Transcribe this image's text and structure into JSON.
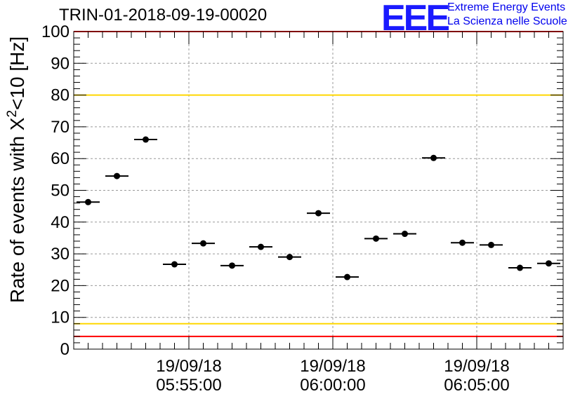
{
  "header": {
    "run_id": "TRIN-01-2018-09-19-00020",
    "logo_mark": "EEE",
    "logo_line1": "Extreme Energy Events",
    "logo_line2": "La Scienza nelle Scuole"
  },
  "colors": {
    "outer_limit": "#ff0000",
    "inner_limit": "#ffd700",
    "points": "#000000",
    "grid": "#999999",
    "logo": "#1a1aff"
  },
  "chart_data": {
    "type": "scatter",
    "title": "TRIN-01-2018-09-19-00020",
    "ylabel": "Rate of events with X²<10 [Hz]",
    "ylabel_parts": {
      "prefix": "Rate of events with X",
      "sup": "2",
      "suffix": "<10 [Hz]"
    },
    "ylim": [
      0,
      100
    ],
    "yticks": [
      "0",
      "10",
      "20",
      "30",
      "40",
      "50",
      "60",
      "70",
      "80",
      "90",
      "100"
    ],
    "x_range": [
      "05:51:00",
      "06:08:00"
    ],
    "xticks": [
      {
        "date": "19/09/18",
        "time": "05:55:00"
      },
      {
        "date": "19/09/18",
        "time": "06:00:00"
      },
      {
        "date": "19/09/18",
        "time": "06:05:00"
      }
    ],
    "bin_width_s": 60,
    "grid": true,
    "reference_lines": [
      {
        "y": 100,
        "color": "red"
      },
      {
        "y": 80,
        "color": "gold"
      },
      {
        "y": 8,
        "color": "gold"
      },
      {
        "y": 4,
        "color": "red"
      }
    ],
    "series": [
      {
        "x": [
          "05:51:30",
          "05:52:30",
          "05:53:30",
          "05:54:30",
          "05:55:30",
          "05:56:30",
          "05:57:30",
          "05:58:30",
          "05:59:30",
          "06:00:30",
          "06:01:30",
          "06:02:30",
          "06:03:30",
          "06:04:30",
          "06:05:30",
          "06:06:30",
          "06:07:30"
        ],
        "y": [
          46.3,
          54.5,
          66.0,
          26.7,
          33.3,
          26.3,
          32.2,
          29.0,
          42.8,
          22.7,
          34.8,
          36.3,
          60.2,
          33.5,
          32.8,
          25.6,
          27.0
        ]
      }
    ]
  }
}
